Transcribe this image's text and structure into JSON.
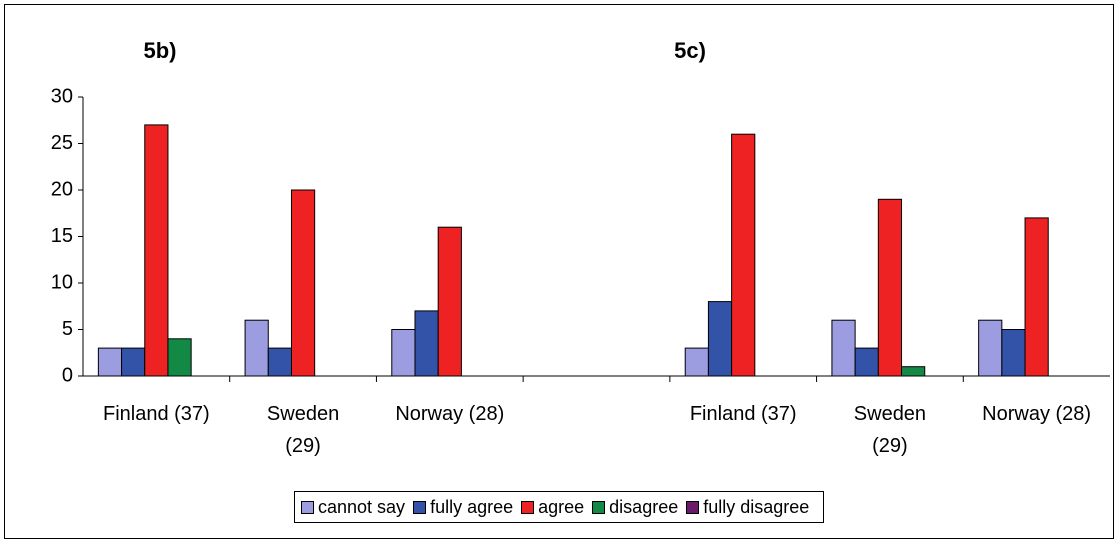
{
  "chart_data": {
    "type": "bar",
    "annotations": [
      "5b)",
      "5c)"
    ],
    "categories": [
      "Finland (37)",
      "Sweden (29)",
      "Norway (28)",
      null,
      "Finland (37)",
      "Sweden (29)",
      "Norway (28)"
    ],
    "series": [
      {
        "name": "cannot say",
        "color": "#9c9ce0",
        "values": [
          3,
          6,
          5,
          null,
          3,
          6,
          6
        ]
      },
      {
        "name": "fully agree",
        "color": "#3353a8",
        "values": [
          3,
          3,
          7,
          null,
          8,
          3,
          5
        ]
      },
      {
        "name": "agree",
        "color": "#ee2222",
        "values": [
          27,
          20,
          16,
          null,
          26,
          19,
          17
        ]
      },
      {
        "name": "disagree",
        "color": "#128a46",
        "values": [
          4,
          0,
          0,
          null,
          0,
          1,
          0
        ]
      },
      {
        "name": "fully disagree",
        "color": "#6a1a6a",
        "values": [
          0,
          0,
          0,
          null,
          0,
          0,
          0
        ]
      }
    ],
    "ylim": [
      0,
      30
    ],
    "yticks": [
      0,
      5,
      10,
      15,
      20,
      25,
      30
    ],
    "grid": false,
    "legend": "bottom"
  }
}
